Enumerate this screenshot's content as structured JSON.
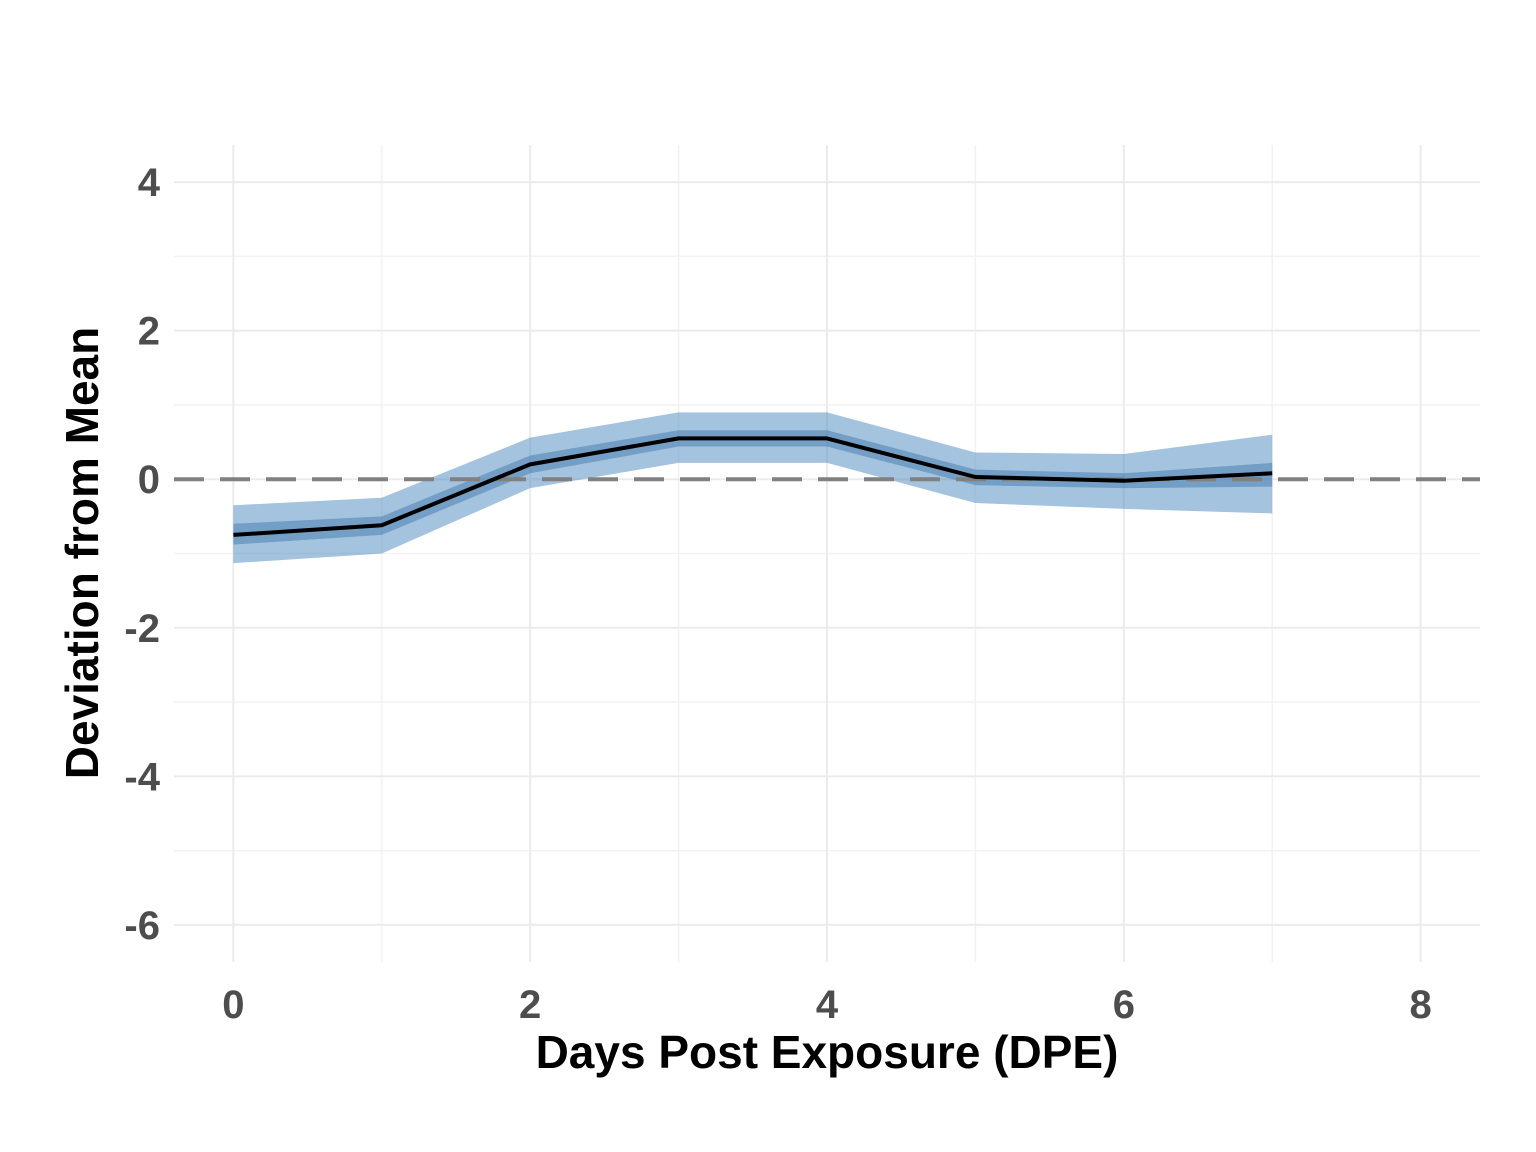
{
  "chart_data": {
    "type": "line",
    "title": "",
    "xlabel": "Days Post Exposure (DPE)",
    "ylabel": "Deviation from Mean",
    "xlim": [
      -0.4,
      8.4
    ],
    "ylim": [
      -6.5,
      4.5
    ],
    "x_ticks": [
      0,
      2,
      4,
      6,
      8
    ],
    "y_ticks": [
      4,
      2,
      0,
      -2,
      -4,
      -6
    ],
    "x_tick_labels": [
      "0",
      "2",
      "4",
      "6",
      "8"
    ],
    "y_tick_labels": [
      "4",
      "2",
      "0",
      "-2",
      "-4",
      "-6"
    ],
    "grid": true,
    "legend": "none",
    "reference_line": {
      "y": 0,
      "style": "dashed",
      "color": "#808080"
    },
    "series": [
      {
        "x": [
          0,
          1,
          2,
          3,
          4,
          5,
          6,
          7
        ],
        "y": [
          -0.75,
          -0.62,
          0.2,
          0.55,
          0.55,
          0.03,
          -0.02,
          0.08
        ],
        "inner_lower": [
          -0.88,
          -0.75,
          0.08,
          0.44,
          0.44,
          -0.08,
          -0.12,
          -0.1
        ],
        "inner_upper": [
          -0.6,
          -0.5,
          0.32,
          0.66,
          0.66,
          0.13,
          0.08,
          0.22
        ],
        "outer_lower": [
          -1.13,
          -1.0,
          -0.12,
          0.22,
          0.22,
          -0.32,
          -0.4,
          -0.46
        ],
        "outer_upper": [
          -0.35,
          -0.25,
          0.56,
          0.9,
          0.9,
          0.36,
          0.34,
          0.6
        ],
        "line_color": "#000000",
        "inner_band_color": "#4a7fb0",
        "outer_band_color": "#4a87bd"
      }
    ]
  }
}
